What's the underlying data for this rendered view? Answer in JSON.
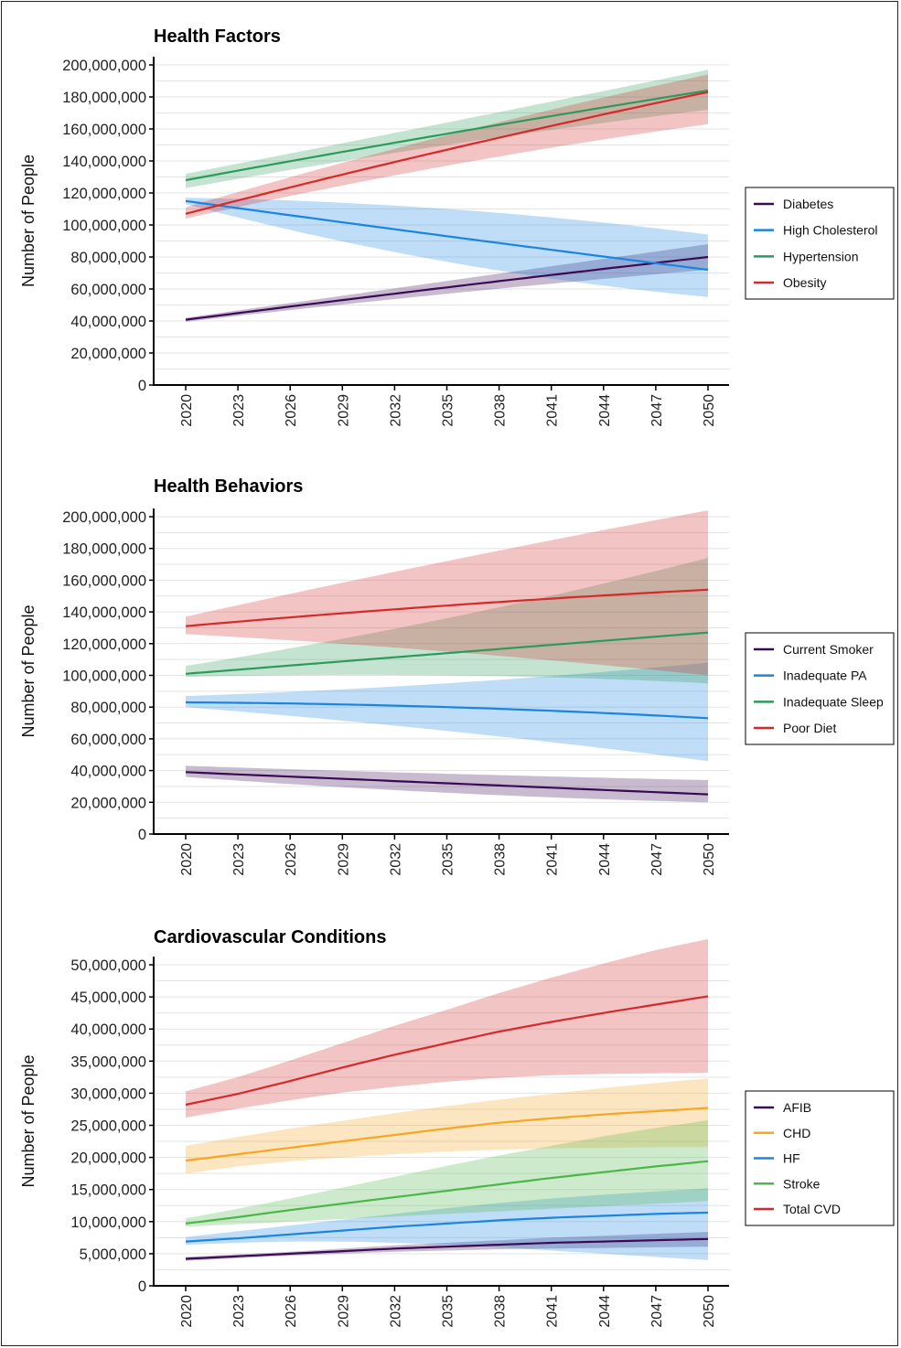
{
  "chart_data": [
    {
      "type": "line",
      "title": "Health Factors",
      "xlabel": "",
      "ylabel": "Number of People",
      "ylim": [
        0,
        200000000
      ],
      "yticks": [
        0,
        20000000,
        40000000,
        60000000,
        80000000,
        100000000,
        120000000,
        140000000,
        160000000,
        180000000,
        200000000
      ],
      "ytick_labels": [
        "0",
        "20,000,000",
        "40,000,000",
        "60,000,000",
        "80,000,000",
        "100,000,000",
        "120,000,000",
        "140,000,000",
        "160,000,000",
        "180,000,000",
        "200,000,000"
      ],
      "x_ticks": [
        "2020",
        "2023",
        "2026",
        "2029",
        "2032",
        "2035",
        "2038",
        "2041",
        "2044",
        "2047",
        "2050"
      ],
      "x": [
        2020,
        2035,
        2050
      ],
      "grid": true,
      "legend_position": "right",
      "series": [
        {
          "name": "Diabetes",
          "color": "#3b0a55",
          "values": [
            40800000,
            61000000,
            80000000
          ],
          "lower": [
            39500000,
            57000000,
            72000000
          ],
          "upper": [
            42000000,
            65000000,
            88000000
          ]
        },
        {
          "name": "High Cholesterol",
          "color": "#1a85e0",
          "values": [
            115000000,
            93000000,
            72000000
          ],
          "lower": [
            113000000,
            77000000,
            55000000
          ],
          "upper": [
            117000000,
            110000000,
            94000000
          ]
        },
        {
          "name": "Hypertension",
          "color": "#2c9a5a",
          "values": [
            128000000,
            157000000,
            184000000
          ],
          "lower": [
            123000000,
            150000000,
            172000000
          ],
          "upper": [
            132000000,
            164000000,
            197000000
          ]
        },
        {
          "name": "Obesity",
          "color": "#d42a2a",
          "values": [
            107000000,
            147000000,
            183000000
          ],
          "lower": [
            104000000,
            137000000,
            163000000
          ],
          "upper": [
            111000000,
            156000000,
            194000000
          ]
        }
      ]
    },
    {
      "type": "line",
      "title": "Health Behaviors",
      "xlabel": "",
      "ylabel": "Number of People",
      "ylim": [
        0,
        200000000
      ],
      "yticks": [
        0,
        20000000,
        40000000,
        60000000,
        80000000,
        100000000,
        120000000,
        140000000,
        160000000,
        180000000,
        200000000
      ],
      "ytick_labels": [
        "0",
        "20,000,000",
        "40,000,000",
        "60,000,000",
        "80,000,000",
        "100,000,000",
        "120,000,000",
        "140,000,000",
        "160,000,000",
        "180,000,000",
        "200,000,000"
      ],
      "x_ticks": [
        "2020",
        "2023",
        "2026",
        "2029",
        "2032",
        "2035",
        "2038",
        "2041",
        "2044",
        "2047",
        "2050"
      ],
      "x": [
        2020,
        2035,
        2050
      ],
      "grid": true,
      "legend_position": "right",
      "series": [
        {
          "name": "Current Smoker",
          "color": "#3b0a55",
          "values": [
            39000000,
            32000000,
            25000000
          ],
          "lower": [
            36000000,
            26000000,
            20000000
          ],
          "upper": [
            43000000,
            38000000,
            34000000
          ]
        },
        {
          "name": "Inadequate PA",
          "color": "#1a85e0",
          "values": [
            83000000,
            80000000,
            73000000
          ],
          "lower": [
            80000000,
            65000000,
            46000000
          ],
          "upper": [
            87000000,
            95000000,
            108000000
          ]
        },
        {
          "name": "Inadequate Sleep",
          "color": "#2c9a5a",
          "values": [
            101000000,
            114000000,
            127000000
          ],
          "lower": [
            99000000,
            100000000,
            95000000
          ],
          "upper": [
            106000000,
            136000000,
            174000000
          ]
        },
        {
          "name": "Poor Diet",
          "color": "#d42a2a",
          "values": [
            131000000,
            144000000,
            154000000
          ],
          "lower": [
            126000000,
            115000000,
            100000000
          ],
          "upper": [
            137000000,
            172000000,
            204000000
          ]
        }
      ]
    },
    {
      "type": "line",
      "title": "Cardiovascular Conditions",
      "xlabel": "",
      "ylabel": "Number of People",
      "ylim": [
        0,
        50000000
      ],
      "yticks": [
        0,
        5000000,
        10000000,
        15000000,
        20000000,
        25000000,
        30000000,
        35000000,
        40000000,
        45000000,
        50000000
      ],
      "ytick_labels": [
        "0",
        "5,000,000",
        "10,000,000",
        "15,000,000",
        "20,000,000",
        "25,000,000",
        "30,000,000",
        "35,000,000",
        "40,000,000",
        "45,000,000",
        "50,000,000"
      ],
      "x_ticks": [
        "2020",
        "2023",
        "2026",
        "2029",
        "2032",
        "2035",
        "2038",
        "2041",
        "2044",
        "2047",
        "2050"
      ],
      "x": [
        2020,
        2023,
        2026,
        2029,
        2032,
        2035,
        2038,
        2041,
        2044,
        2047,
        2050
      ],
      "grid": true,
      "legend_position": "right",
      "series": [
        {
          "name": "AFIB",
          "color": "#3b0a55",
          "values": [
            4200000,
            4600000,
            5000000,
            5400000,
            5800000,
            6100000,
            6400000,
            6700000,
            6900000,
            7100000,
            7300000
          ],
          "lower": [
            3900000,
            4300000,
            4700000,
            5000000,
            5300000,
            5500000,
            5700000,
            5800000,
            5900000,
            6000000,
            6100000
          ],
          "upper": [
            4500000,
            4900000,
            5300000,
            5800000,
            6300000,
            6700000,
            7100000,
            7500000,
            7800000,
            8100000,
            8400000
          ]
        },
        {
          "name": "CHD",
          "color": "#f5a623",
          "values": [
            19500000,
            20500000,
            21500000,
            22500000,
            23500000,
            24500000,
            25400000,
            26100000,
            26700000,
            27200000,
            27700000
          ],
          "lower": [
            17500000,
            18600000,
            19400000,
            20000000,
            20500000,
            20900000,
            21200000,
            21400000,
            21500000,
            21600000,
            21600000
          ],
          "upper": [
            21800000,
            23200000,
            24500000,
            25700000,
            26900000,
            28000000,
            29000000,
            29900000,
            30800000,
            31600000,
            32300000
          ]
        },
        {
          "name": "HF",
          "color": "#1a85e0",
          "values": [
            6900000,
            7400000,
            8000000,
            8600000,
            9200000,
            9700000,
            10200000,
            10600000,
            10900000,
            11200000,
            11400000
          ],
          "lower": [
            6400000,
            6700000,
            6900000,
            6900000,
            6700000,
            6400000,
            6000000,
            5500000,
            5000000,
            4500000,
            4000000
          ],
          "upper": [
            7600000,
            8500000,
            9400000,
            10300000,
            11200000,
            12100000,
            12900000,
            13600000,
            14200000,
            14700000,
            15200000
          ]
        },
        {
          "name": "Stroke",
          "color": "#4cb748",
          "values": [
            9700000,
            10700000,
            11800000,
            12800000,
            13800000,
            14800000,
            15800000,
            16800000,
            17700000,
            18600000,
            19400000
          ],
          "lower": [
            9200000,
            9600000,
            10000000,
            10400000,
            10800000,
            11200000,
            11600000,
            12000000,
            12400000,
            12800000,
            13200000
          ],
          "upper": [
            10500000,
            12000000,
            13600000,
            15300000,
            17000000,
            18700000,
            20300000,
            21800000,
            23300000,
            24600000,
            25800000
          ]
        },
        {
          "name": "Total CVD",
          "color": "#d42a2a",
          "values": [
            28200000,
            29900000,
            31900000,
            34000000,
            36000000,
            37800000,
            39600000,
            41100000,
            42500000,
            43800000,
            45100000
          ],
          "lower": [
            26200000,
            27600000,
            28900000,
            30100000,
            31000000,
            31800000,
            32400000,
            32800000,
            33000000,
            33100000,
            33200000
          ],
          "upper": [
            30300000,
            32500000,
            35100000,
            37800000,
            40500000,
            43000000,
            45600000,
            48000000,
            50200000,
            52300000,
            54000000
          ]
        }
      ]
    }
  ]
}
